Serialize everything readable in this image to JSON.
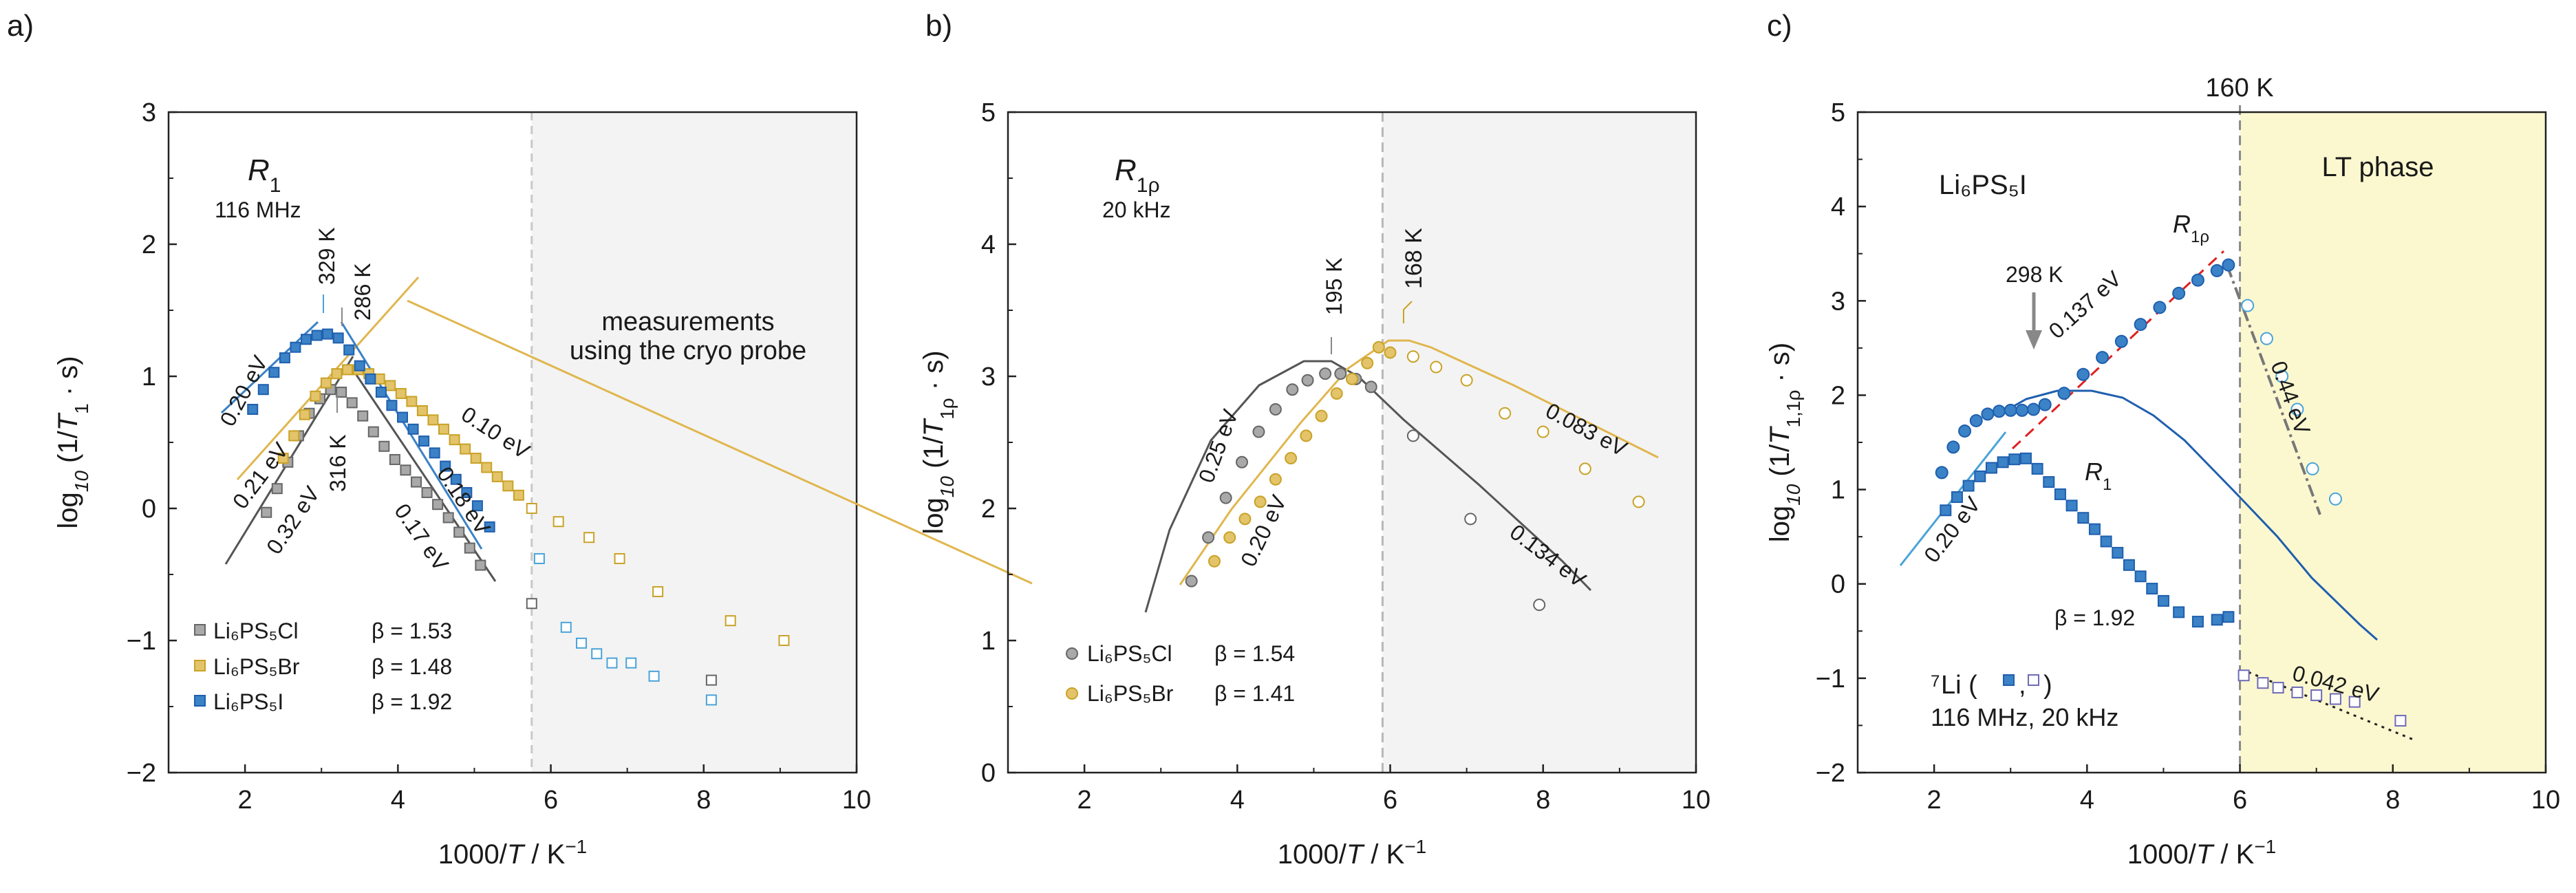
{
  "colors": {
    "cl": "#666666",
    "cl_fill": "#a9a9a9",
    "br": "#c9a227",
    "br_fill": "#e3c46a",
    "br_line": "#e0b64e",
    "i": "#1f5fae",
    "i_fill": "#3b82c6",
    "i_open": "#4aa3d8",
    "dark_text": "#1a1a9a",
    "red": "#e02020",
    "shade_gray": "#f3f3f3",
    "shade_yellow": "#fbf8d0"
  },
  "chart_data": [
    {
      "type": "scatter",
      "panel_label": "a)",
      "title": "R1",
      "subtitle": "116 MHz",
      "xlabel": "1000/T / K⁻¹",
      "ylabel": "log10 (1/T1 · s)",
      "xlim": [
        1,
        10
      ],
      "ylim": [
        -2,
        3
      ],
      "xticks": [
        "2",
        "4",
        "6",
        "8",
        "10"
      ],
      "yticks": [
        "−2",
        "−1",
        "0",
        "1",
        "2",
        "3"
      ],
      "shaded_from_x": 5.75,
      "shade_note_1": "measurements",
      "shade_note_2": "using the cryo probe",
      "series": [
        {
          "name": "Li6PS5Cl",
          "legend_text": "Li₆PS₅Cl",
          "beta": "β = 1.53",
          "color_key": "cl",
          "x": [
            2.28,
            2.42,
            2.56,
            2.7,
            2.84,
            2.98,
            3.12,
            3.26,
            3.4,
            3.54,
            3.68,
            3.82,
            3.96,
            4.1,
            4.24,
            4.38,
            4.52,
            4.66,
            4.8,
            4.94,
            5.08,
            5.75,
            8.1
          ],
          "y": [
            -0.03,
            0.15,
            0.35,
            0.55,
            0.72,
            0.83,
            0.9,
            0.88,
            0.8,
            0.7,
            0.58,
            0.47,
            0.37,
            0.29,
            0.2,
            0.12,
            0.03,
            -0.07,
            -0.18,
            -0.3,
            -0.43,
            -0.72,
            -1.3
          ]
        },
        {
          "name": "Li6PS5Br",
          "legend_text": "Li₆PS₅Br",
          "beta": "β = 1.48",
          "color_key": "br",
          "x": [
            2.5,
            2.64,
            2.78,
            2.92,
            3.06,
            3.2,
            3.34,
            3.48,
            3.62,
            3.76,
            3.9,
            4.04,
            4.18,
            4.32,
            4.46,
            4.6,
            4.74,
            4.88,
            5.02,
            5.16,
            5.3,
            5.44,
            5.58,
            5.75,
            6.1,
            6.5,
            6.9,
            7.4,
            8.35,
            9.05
          ],
          "y": [
            0.38,
            0.55,
            0.71,
            0.85,
            0.95,
            1.02,
            1.05,
            1.05,
            1.02,
            0.98,
            0.93,
            0.87,
            0.81,
            0.74,
            0.67,
            0.6,
            0.52,
            0.45,
            0.38,
            0.31,
            0.24,
            0.17,
            0.1,
            0.0,
            -0.1,
            -0.22,
            -0.38,
            -0.63,
            -0.85,
            -1.0
          ]
        },
        {
          "name": "Li6PS5I",
          "legend_text": "Li₆PS₅I",
          "beta": "β = 1.92",
          "color_key": "i",
          "x": [
            2.1,
            2.24,
            2.38,
            2.52,
            2.66,
            2.8,
            2.94,
            3.08,
            3.22,
            3.36,
            3.5,
            3.64,
            3.78,
            3.92,
            4.06,
            4.2,
            4.34,
            4.48,
            4.62,
            4.76,
            4.9,
            5.04,
            5.2
          ],
          "y": [
            0.75,
            0.9,
            1.03,
            1.14,
            1.22,
            1.28,
            1.31,
            1.32,
            1.29,
            1.2,
            1.08,
            0.98,
            0.88,
            0.78,
            0.69,
            0.6,
            0.51,
            0.42,
            0.32,
            0.22,
            0.12,
            0.02,
            -0.14
          ]
        },
        {
          "name": "Li6PS5I cryo probe",
          "color_key": "i_open",
          "x": [
            5.85,
            6.2,
            6.4,
            6.6,
            6.8,
            7.05,
            7.35,
            8.1
          ],
          "y": [
            -0.38,
            -0.9,
            -1.02,
            -1.1,
            -1.17,
            -1.17,
            -1.27,
            -1.45
          ]
        }
      ],
      "annotations": [
        {
          "text": "329 K",
          "color_key": "i_open"
        },
        {
          "text": "286 K",
          "color_key": "cl"
        },
        {
          "text": "316 K",
          "color_key": "cl"
        },
        {
          "text": "0.20 eV",
          "color_key": "dark_text"
        },
        {
          "text": "0.21 eV",
          "color_key": "br"
        },
        {
          "text": "0.32 eV",
          "color_key": "cl"
        },
        {
          "text": "0.17 eV",
          "color_key": "cl"
        },
        {
          "text": "0.18 eV",
          "color_key": "dark_text"
        },
        {
          "text": "0.10 eV",
          "color_key": "br"
        }
      ]
    },
    {
      "type": "scatter",
      "panel_label": "b)",
      "title": "R1ρ",
      "subtitle": "20 kHz",
      "xlabel": "1000/T / K⁻¹",
      "ylabel": "log10 (1/T1ρ · s)",
      "xlim": [
        1,
        10
      ],
      "ylim": [
        0,
        5
      ],
      "xticks": [
        "2",
        "4",
        "6",
        "8",
        "10"
      ],
      "yticks": [
        "0",
        "1",
        "2",
        "3",
        "4",
        "5"
      ],
      "shaded_from_x": 5.9,
      "series": [
        {
          "name": "Li6PS5Cl",
          "legend_text": "Li₆PS₅Cl",
          "beta": "β = 1.54",
          "color_key": "cl",
          "x": [
            3.4,
            3.62,
            3.85,
            4.06,
            4.28,
            4.5,
            4.72,
            4.92,
            5.15,
            5.35,
            5.55,
            5.75,
            6.3,
            7.05,
            7.95
          ],
          "y": [
            1.45,
            1.78,
            2.08,
            2.35,
            2.58,
            2.75,
            2.9,
            2.97,
            3.02,
            3.02,
            2.98,
            2.92,
            2.55,
            1.92,
            1.27
          ]
        },
        {
          "name": "Li6PS5Br",
          "legend_text": "Li₆PS₅Br",
          "beta": "β = 1.41",
          "color_key": "br",
          "x": [
            3.7,
            3.9,
            4.1,
            4.3,
            4.5,
            4.7,
            4.9,
            5.1,
            5.3,
            5.5,
            5.7,
            5.85,
            6.0,
            6.3,
            6.6,
            7.0,
            7.5,
            8.0,
            8.55,
            9.25
          ],
          "y": [
            1.6,
            1.78,
            1.92,
            2.05,
            2.22,
            2.38,
            2.55,
            2.7,
            2.87,
            2.98,
            3.1,
            3.22,
            3.18,
            3.15,
            3.07,
            2.97,
            2.72,
            2.58,
            2.3,
            2.05
          ]
        }
      ],
      "annotations": [
        {
          "text": "195 K",
          "color_key": "cl"
        },
        {
          "text": "168 K",
          "color_key": "br"
        },
        {
          "text": "0.25 eV",
          "color_key": "cl"
        },
        {
          "text": "0.20 eV",
          "color_key": "br"
        },
        {
          "text": "0.083 eV",
          "color_key": "br"
        },
        {
          "text": "0.134 eV",
          "color_key": "cl"
        }
      ]
    },
    {
      "type": "scatter",
      "panel_label": "c)",
      "title": "Li6PS5I",
      "title_text": "Li₆PS₅I",
      "xlabel": "1000/T / K⁻¹",
      "ylabel": "log10 (1/T1,1ρ · s)",
      "xlim": [
        1,
        10
      ],
      "ylim": [
        -2,
        5
      ],
      "xticks": [
        "2",
        "4",
        "6",
        "8",
        "10"
      ],
      "yticks": [
        "−2",
        "−1",
        "0",
        "1",
        "2",
        "3",
        "4",
        "5"
      ],
      "transition_x": 6.0,
      "transition_label": "160 K",
      "phase_label": "LT phase",
      "nucleus_prefix": "7",
      "nucleus_text": "Li (",
      "nucleus_comma": ",",
      "nucleus_close": ")",
      "frequencies": "116 MHz, 20 kHz",
      "series": [
        {
          "name": "R1ρ",
          "color_key": "i",
          "x": [
            2.1,
            2.25,
            2.4,
            2.55,
            2.7,
            2.85,
            3.0,
            3.15,
            3.3,
            3.45,
            3.7,
            3.95,
            4.2,
            4.45,
            4.7,
            4.95,
            5.2,
            5.45,
            5.7,
            5.85
          ],
          "y": [
            1.18,
            1.45,
            1.62,
            1.73,
            1.8,
            1.83,
            1.84,
            1.84,
            1.85,
            1.9,
            2.02,
            2.22,
            2.4,
            2.57,
            2.75,
            2.93,
            3.08,
            3.22,
            3.32,
            3.38
          ]
        },
        {
          "name": "R1ρ LT",
          "color_key": "i_open",
          "x": [
            6.1,
            6.35,
            6.55,
            6.75,
            6.95,
            7.25
          ],
          "y": [
            2.95,
            2.6,
            2.2,
            1.85,
            1.22,
            0.9
          ]
        },
        {
          "name": "R1",
          "color_key": "i",
          "x": [
            2.15,
            2.3,
            2.45,
            2.6,
            2.75,
            2.9,
            3.05,
            3.2,
            3.35,
            3.5,
            3.65,
            3.8,
            3.95,
            4.1,
            4.25,
            4.4,
            4.55,
            4.7,
            4.85,
            5.0,
            5.2,
            5.45,
            5.7,
            5.85
          ],
          "y": [
            0.78,
            0.92,
            1.04,
            1.14,
            1.23,
            1.29,
            1.32,
            1.33,
            1.22,
            1.08,
            0.95,
            0.83,
            0.7,
            0.58,
            0.45,
            0.33,
            0.2,
            0.08,
            -0.05,
            -0.18,
            -0.3,
            -0.4,
            -0.38,
            -0.35
          ]
        },
        {
          "name": "R1 LT",
          "color_key": "i_open",
          "x": [
            6.05,
            6.3,
            6.5,
            6.75,
            7.0,
            7.25,
            7.5,
            8.1
          ],
          "y": [
            -0.97,
            -1.05,
            -1.1,
            -1.15,
            -1.18,
            -1.22,
            -1.25,
            -1.45
          ]
        }
      ],
      "annotations": [
        {
          "text": "298 K",
          "color_key": "cl"
        },
        {
          "text": "R1ρ",
          "color_key": "dark"
        },
        {
          "text": "R1",
          "color_key": "dark"
        },
        {
          "text": "0.137 eV",
          "color_key": "red"
        },
        {
          "text": "0.44 eV",
          "color_key": "dark"
        },
        {
          "text": "0.20 eV",
          "color_key": "i_open"
        },
        {
          "text": "β = 1.92",
          "color_key": "i_open"
        },
        {
          "text": "0.042 eV",
          "color_key": "dark"
        }
      ]
    }
  ]
}
